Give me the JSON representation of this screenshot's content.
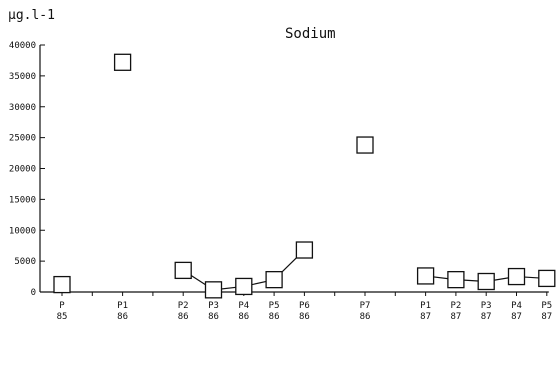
{
  "chart_data": {
    "type": "scatter",
    "title": "Sodium",
    "ylabel": "µg.l-1",
    "xlabel": "",
    "ylim": [
      0,
      40000
    ],
    "yticks": [
      0,
      5000,
      10000,
      15000,
      20000,
      25000,
      30000,
      35000,
      40000
    ],
    "grid": false,
    "legend": "none",
    "colors": {
      "axis": "#111111",
      "marker_fill": "#ffffff",
      "marker_stroke": "#111111"
    },
    "categories": [
      {
        "top": "P",
        "bottom": "85"
      },
      {
        "top": "P1",
        "bottom": "86"
      },
      {
        "top": "P2",
        "bottom": "86"
      },
      {
        "top": "P3",
        "bottom": "86"
      },
      {
        "top": "P4",
        "bottom": "86"
      },
      {
        "top": "P5",
        "bottom": "86"
      },
      {
        "top": "P6",
        "bottom": "86"
      },
      {
        "top": "P7",
        "bottom": "86"
      },
      {
        "top": "P1",
        "bottom": "87"
      },
      {
        "top": "P2",
        "bottom": "87"
      },
      {
        "top": "P3",
        "bottom": "87"
      },
      {
        "top": "P4",
        "bottom": "87"
      },
      {
        "top": "P5",
        "bottom": "87"
      }
    ],
    "x_slots": [
      0,
      2,
      4,
      5,
      6,
      7,
      8,
      10,
      12,
      13,
      14,
      15,
      16
    ],
    "values": [
      1200,
      37200,
      3500,
      350,
      900,
      2000,
      6800,
      23800,
      2600,
      2000,
      1700,
      2500,
      2200
    ],
    "connected_segments": [
      [
        2,
        6
      ],
      [
        8,
        12
      ]
    ]
  }
}
